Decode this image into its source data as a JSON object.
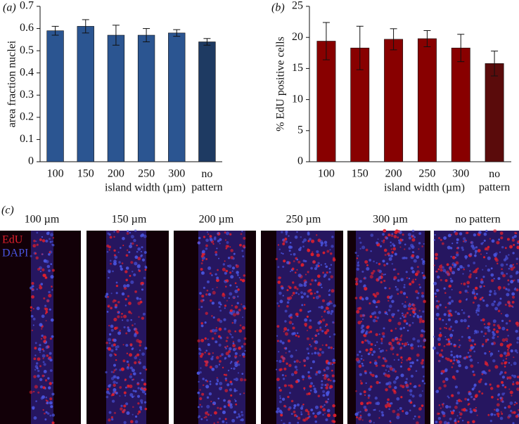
{
  "chart_data": [
    {
      "type": "bar",
      "panel_label": "(a)",
      "ylabel": "area fraction nuclei",
      "xlabel": "island width (µm)",
      "categories": [
        "100",
        "150",
        "200",
        "250",
        "300",
        "no pattern"
      ],
      "values": [
        0.59,
        0.61,
        0.57,
        0.57,
        0.58,
        0.54
      ],
      "errors": [
        0.02,
        0.03,
        0.045,
        0.03,
        0.015,
        0.015
      ],
      "colors": [
        "#2b5591",
        "#2b5591",
        "#2b5591",
        "#2b5591",
        "#2b5591",
        "#1e3a62"
      ],
      "ylim": [
        0,
        0.7
      ],
      "yticks": [
        0,
        0.1,
        0.2,
        0.3,
        0.4,
        0.5,
        0.6,
        0.7
      ]
    },
    {
      "type": "bar",
      "panel_label": "(b)",
      "ylabel": "% EdU positive cells",
      "xlabel": "island width (µm)",
      "categories": [
        "100",
        "150",
        "200",
        "250",
        "300",
        "no pattern"
      ],
      "values": [
        19.4,
        18.3,
        19.7,
        19.8,
        18.3,
        15.8
      ],
      "errors": [
        3.0,
        3.5,
        1.7,
        1.3,
        2.2,
        2.0
      ],
      "colors": [
        "#880000",
        "#880000",
        "#880000",
        "#880000",
        "#880000",
        "#5a0b0b"
      ],
      "ylim": [
        0,
        25
      ],
      "yticks": [
        0,
        5,
        10,
        15,
        20,
        25
      ]
    }
  ],
  "image_panel": {
    "label": "(c)",
    "titles": [
      "100 µm",
      "150 µm",
      "200 µm",
      "250 µm",
      "300 µm",
      "no pattern"
    ],
    "stains": [
      "EdU",
      "DAPI"
    ],
    "stain_colors": [
      "#e2202c",
      "#4a55e0"
    ]
  }
}
